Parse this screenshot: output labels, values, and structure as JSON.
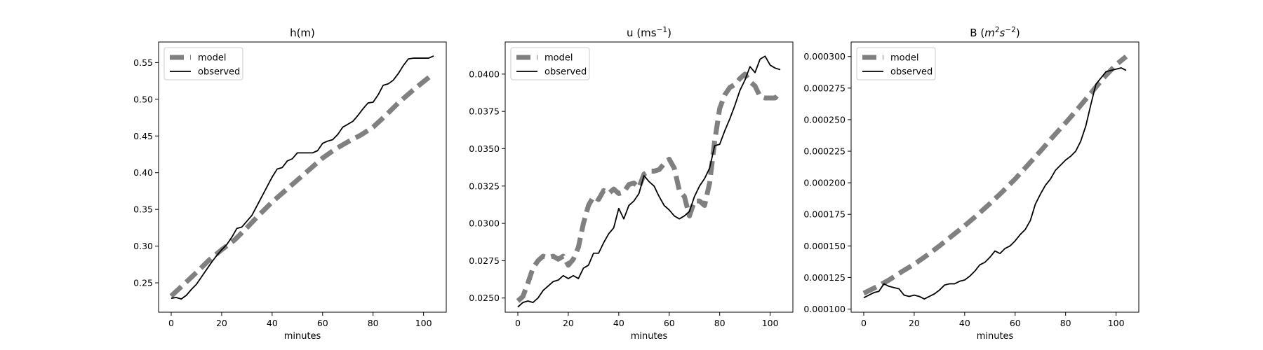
{
  "figure": {
    "background": "#ffffff",
    "model_color": "#808080",
    "observed_color": "#000000"
  },
  "chart_data": [
    {
      "type": "line",
      "title": "h(m)",
      "title_main": "h(m)",
      "title_unit": "",
      "xlabel": "minutes",
      "ylabel": "",
      "xlim": [
        -5,
        109
      ],
      "ylim": [
        0.21,
        0.578
      ],
      "x_ticks": [
        0,
        20,
        40,
        60,
        80,
        100
      ],
      "y_ticks": [
        0.25,
        0.3,
        0.35,
        0.4,
        0.45,
        0.5,
        0.55
      ],
      "y_tick_labels": [
        "0.25",
        "0.30",
        "0.35",
        "0.40",
        "0.45",
        "0.50",
        "0.55"
      ],
      "legend": {
        "placement": "top-left",
        "entries": [
          "model",
          "observed"
        ]
      },
      "grid": false,
      "series": [
        {
          "name": "model",
          "style": "dashed",
          "x": [
            0,
            5,
            10,
            15,
            20,
            25,
            30,
            35,
            40,
            45,
            50,
            55,
            60,
            65,
            70,
            75,
            80,
            85,
            90,
            95,
            100,
            104
          ],
          "y": [
            0.232,
            0.248,
            0.264,
            0.281,
            0.295,
            0.308,
            0.325,
            0.343,
            0.36,
            0.375,
            0.39,
            0.405,
            0.42,
            0.432,
            0.442,
            0.451,
            0.462,
            0.478,
            0.495,
            0.51,
            0.524,
            0.535
          ]
        },
        {
          "name": "observed",
          "style": "solid",
          "x": [
            0,
            2,
            4,
            6,
            8,
            10,
            12,
            14,
            16,
            18,
            20,
            22,
            24,
            26,
            28,
            30,
            32,
            34,
            36,
            38,
            40,
            42,
            44,
            46,
            48,
            50,
            52,
            54,
            56,
            58,
            60,
            62,
            64,
            66,
            68,
            70,
            72,
            74,
            76,
            78,
            80,
            82,
            84,
            86,
            88,
            90,
            92,
            94,
            96,
            98,
            100,
            102,
            104
          ],
          "y": [
            0.229,
            0.23,
            0.228,
            0.233,
            0.241,
            0.248,
            0.258,
            0.268,
            0.278,
            0.287,
            0.295,
            0.302,
            0.312,
            0.324,
            0.326,
            0.334,
            0.342,
            0.355,
            0.368,
            0.381,
            0.394,
            0.405,
            0.407,
            0.416,
            0.419,
            0.427,
            0.427,
            0.427,
            0.427,
            0.43,
            0.44,
            0.443,
            0.445,
            0.452,
            0.462,
            0.466,
            0.47,
            0.478,
            0.487,
            0.495,
            0.496,
            0.506,
            0.519,
            0.521,
            0.526,
            0.535,
            0.546,
            0.555,
            0.556,
            0.556,
            0.556,
            0.556,
            0.559
          ]
        }
      ]
    },
    {
      "type": "line",
      "title": "u (ms-1)",
      "title_main": "u (ms",
      "title_unit": "−1",
      "xlabel": "minutes",
      "ylabel": "",
      "xlim": [
        -5,
        109
      ],
      "ylim": [
        0.02405,
        0.04215
      ],
      "x_ticks": [
        0,
        20,
        40,
        60,
        80,
        100
      ],
      "y_ticks": [
        0.025,
        0.0275,
        0.03,
        0.0325,
        0.035,
        0.0375,
        0.04
      ],
      "y_tick_labels": [
        "0.0250",
        "0.0275",
        "0.0300",
        "0.0325",
        "0.0350",
        "0.0375",
        "0.0400"
      ],
      "legend": {
        "placement": "top-left",
        "entries": [
          "model",
          "observed"
        ]
      },
      "grid": false,
      "series": [
        {
          "name": "model",
          "style": "dashed",
          "x": [
            0,
            2,
            4,
            6,
            8,
            10,
            12,
            14,
            16,
            18,
            20,
            22,
            24,
            26,
            28,
            30,
            32,
            34,
            36,
            38,
            40,
            42,
            44,
            46,
            48,
            50,
            52,
            54,
            56,
            58,
            60,
            62,
            64,
            66,
            68,
            70,
            72,
            74,
            76,
            78,
            80,
            82,
            84,
            86,
            88,
            90,
            92,
            94,
            96,
            98,
            100,
            102,
            104
          ],
          "y": [
            0.0248,
            0.0251,
            0.026,
            0.027,
            0.0275,
            0.0278,
            0.0277,
            0.0278,
            0.0276,
            0.0278,
            0.0272,
            0.0276,
            0.0284,
            0.03,
            0.0312,
            0.0318,
            0.0316,
            0.0322,
            0.032,
            0.0323,
            0.032,
            0.0321,
            0.0326,
            0.0327,
            0.0324,
            0.0333,
            0.0335,
            0.0335,
            0.0336,
            0.034,
            0.0343,
            0.0337,
            0.0322,
            0.0318,
            0.0305,
            0.0315,
            0.0315,
            0.0312,
            0.0327,
            0.0355,
            0.0377,
            0.0386,
            0.0391,
            0.0393,
            0.0397,
            0.04,
            0.0395,
            0.0392,
            0.0385,
            0.0384,
            0.0384,
            0.0384,
            0.0388
          ]
        },
        {
          "name": "observed",
          "style": "solid",
          "x": [
            0,
            2,
            4,
            6,
            8,
            10,
            12,
            14,
            16,
            18,
            20,
            22,
            24,
            26,
            28,
            30,
            32,
            34,
            36,
            38,
            40,
            42,
            44,
            46,
            48,
            50,
            52,
            54,
            56,
            58,
            60,
            62,
            64,
            66,
            68,
            70,
            72,
            74,
            76,
            78,
            80,
            82,
            84,
            86,
            88,
            90,
            92,
            94,
            96,
            98,
            100,
            102,
            104
          ],
          "y": [
            0.0244,
            0.0247,
            0.0248,
            0.0247,
            0.025,
            0.0255,
            0.0258,
            0.0261,
            0.0262,
            0.0265,
            0.0263,
            0.0265,
            0.0263,
            0.027,
            0.0272,
            0.028,
            0.028,
            0.0287,
            0.0293,
            0.0297,
            0.031,
            0.0303,
            0.0312,
            0.0315,
            0.032,
            0.0332,
            0.0328,
            0.0325,
            0.0318,
            0.0312,
            0.0309,
            0.0305,
            0.0303,
            0.0305,
            0.0308,
            0.0318,
            0.0325,
            0.033,
            0.0337,
            0.0352,
            0.0353,
            0.0362,
            0.037,
            0.0379,
            0.0389,
            0.0396,
            0.0405,
            0.0401,
            0.041,
            0.0412,
            0.0406,
            0.0404,
            0.0403
          ]
        }
      ]
    },
    {
      "type": "line",
      "title": "B (m2s-2)",
      "title_main": "B (",
      "title_unit": "",
      "xlabel": "minutes",
      "ylabel": "",
      "xlim": [
        -5,
        109
      ],
      "ylim": [
        9.75e-05,
        0.0003115
      ],
      "x_ticks": [
        0,
        20,
        40,
        60,
        80,
        100
      ],
      "y_ticks": [
        0.0001,
        0.000125,
        0.00015,
        0.000175,
        0.0002,
        0.000225,
        0.00025,
        0.000275,
        0.0003
      ],
      "y_tick_labels": [
        "0.000100",
        "0.000125",
        "0.000150",
        "0.000175",
        "0.000200",
        "0.000225",
        "0.000250",
        "0.000275",
        "0.000300"
      ],
      "legend": {
        "placement": "top-left",
        "entries": [
          "model",
          "observed"
        ]
      },
      "grid": false,
      "series": [
        {
          "name": "model",
          "style": "dashed",
          "x": [
            0,
            5,
            10,
            15,
            20,
            25,
            30,
            35,
            40,
            45,
            50,
            55,
            60,
            65,
            70,
            75,
            80,
            85,
            90,
            95,
            100,
            104
          ],
          "y": [
            0.0001125,
            0.0001175,
            0.000123,
            0.0001295,
            0.0001355,
            0.0001425,
            0.00015,
            0.000158,
            0.000166,
            0.0001745,
            0.0001835,
            0.000193,
            0.000203,
            0.000214,
            0.000225,
            0.0002365,
            0.0002475,
            0.000259,
            0.000271,
            0.000283,
            0.0002935,
            0.0003
          ]
        },
        {
          "name": "observed",
          "style": "solid",
          "x": [
            0,
            2,
            4,
            6,
            8,
            10,
            12,
            14,
            16,
            18,
            20,
            22,
            24,
            26,
            28,
            30,
            32,
            34,
            36,
            38,
            40,
            42,
            44,
            46,
            48,
            50,
            52,
            54,
            56,
            58,
            60,
            62,
            64,
            66,
            68,
            70,
            72,
            74,
            76,
            78,
            80,
            82,
            84,
            86,
            88,
            90,
            92,
            94,
            96,
            98,
            100,
            102,
            104
          ],
          "y": [
            0.000109,
            0.000111,
            0.000113,
            0.000114,
            0.00012,
            0.000118,
            0.000117,
            0.000116,
            0.000111,
            0.00011,
            0.000111,
            0.00011,
            0.000108,
            0.00011,
            0.000112,
            0.000115,
            0.000119,
            0.00012,
            0.00012,
            0.000122,
            0.000123,
            0.000126,
            0.00013,
            0.000135,
            0.000137,
            0.000141,
            0.000146,
            0.000144,
            0.000148,
            0.00015,
            0.000154,
            0.000159,
            0.000163,
            0.00017,
            0.000183,
            0.000191,
            0.000198,
            0.000203,
            0.00021,
            0.000214,
            0.000218,
            0.000221,
            0.000225,
            0.000233,
            0.000245,
            0.000262,
            0.000278,
            0.000283,
            0.000288,
            0.000289,
            0.00029,
            0.000291,
            0.000289
          ]
        }
      ]
    }
  ]
}
